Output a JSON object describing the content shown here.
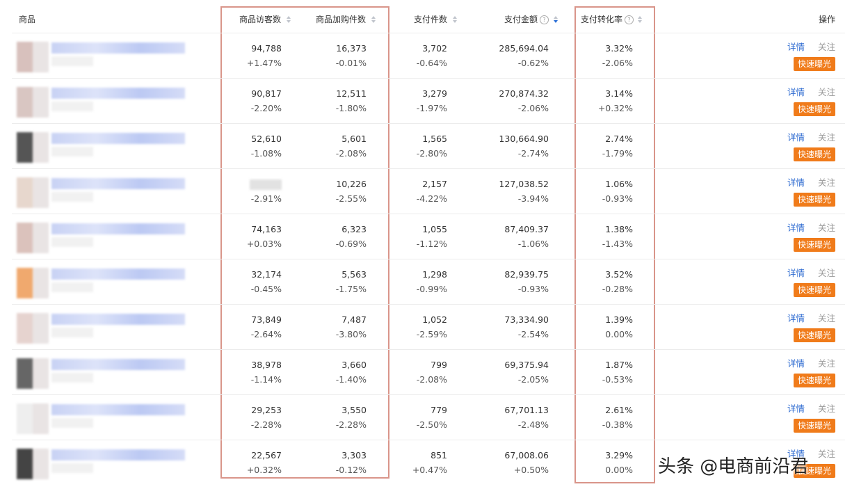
{
  "header": {
    "columns": [
      "商品",
      "商品访客数",
      "商品加购件数",
      "支付件数",
      "支付金额",
      "支付转化率",
      "操作"
    ]
  },
  "table": {
    "rows": [
      [
        {
          "value": "94,788",
          "change": "+1.47%"
        },
        {
          "value": "16,373",
          "change": "-0.01%"
        },
        {
          "value": "3,702",
          "change": "-0.64%"
        },
        {
          "value": "285,694.04",
          "change": "-0.62%"
        },
        {
          "value": "3.32%",
          "change": "-2.06%"
        }
      ],
      [
        {
          "value": "90,817",
          "change": "-2.20%"
        },
        {
          "value": "12,511",
          "change": "-1.80%"
        },
        {
          "value": "3,279",
          "change": "-1.97%"
        },
        {
          "value": "270,874.32",
          "change": "-2.06%"
        },
        {
          "value": "3.14%",
          "change": "+0.32%"
        }
      ],
      [
        {
          "value": "52,610",
          "change": "-1.08%"
        },
        {
          "value": "5,601",
          "change": "-2.08%"
        },
        {
          "value": "1,565",
          "change": "-2.80%"
        },
        {
          "value": "130,664.90",
          "change": "-2.74%"
        },
        {
          "value": "2.74%",
          "change": "-1.79%"
        }
      ],
      [
        {
          "change": "-2.91%"
        },
        {
          "value": "10,226",
          "change": "-2.55%"
        },
        {
          "value": "2,157",
          "change": "-4.22%"
        },
        {
          "value": "127,038.52",
          "change": "-3.94%"
        },
        {
          "value": "1.06%",
          "change": "-0.93%"
        }
      ],
      [
        {
          "value": "74,163",
          "change": "+0.03%"
        },
        {
          "value": "6,323",
          "change": "-0.69%"
        },
        {
          "value": "1,055",
          "change": "-1.12%"
        },
        {
          "value": "87,409.37",
          "change": "-1.06%"
        },
        {
          "value": "1.38%",
          "change": "-1.43%"
        }
      ],
      [
        {
          "value": "32,174",
          "change": "-0.45%"
        },
        {
          "value": "5,563",
          "change": "-1.75%"
        },
        {
          "value": "1,298",
          "change": "-0.99%"
        },
        {
          "value": "82,939.75",
          "change": "-0.93%"
        },
        {
          "value": "3.52%",
          "change": "-0.28%"
        }
      ],
      [
        {
          "value": "73,849",
          "change": "-2.64%"
        },
        {
          "value": "7,487",
          "change": "-3.80%"
        },
        {
          "value": "1,052",
          "change": "-2.59%"
        },
        {
          "value": "73,334.90",
          "change": "-2.54%"
        },
        {
          "value": "1.39%",
          "change": "0.00%"
        }
      ],
      [
        {
          "value": "38,978",
          "change": "-1.14%"
        },
        {
          "value": "3,660",
          "change": "-1.40%"
        },
        {
          "value": "799",
          "change": "-2.08%"
        },
        {
          "value": "69,375.94",
          "change": "-2.05%"
        },
        {
          "value": "1.87%",
          "change": "-0.53%"
        }
      ],
      [
        {
          "value": "29,253",
          "change": "-2.28%"
        },
        {
          "value": "3,550",
          "change": "-2.28%"
        },
        {
          "value": "779",
          "change": "-2.50%"
        },
        {
          "value": "67,701.13",
          "change": "-2.48%"
        },
        {
          "value": "2.61%",
          "change": "-0.38%"
        }
      ],
      [
        {
          "value": "22,567",
          "change": "+0.32%"
        },
        {
          "value": "3,303",
          "change": "-0.12%"
        },
        {
          "value": "851",
          "change": "+0.47%"
        },
        {
          "value": "67,008.06",
          "change": "+0.50%"
        },
        {
          "value": "3.29%",
          "change": "0.00%"
        }
      ]
    ]
  },
  "actions": {
    "detail": "详情",
    "follow": "关注",
    "boost": "快速曝光"
  },
  "watermark": "头条 @电商前沿君"
}
